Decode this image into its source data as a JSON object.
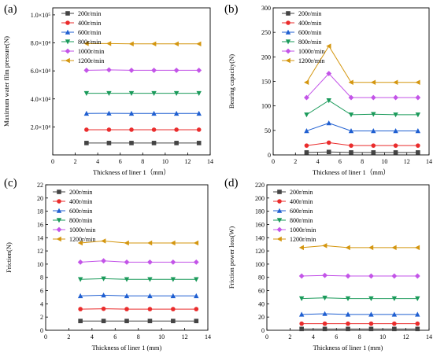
{
  "chart_data": [
    {
      "type": "line",
      "panel_label": "(a)",
      "xlabel": "Thickness of liner 1（mm）",
      "ylabel": "Maximum water film pressure(N)",
      "xlim": [
        0,
        14
      ],
      "ylim": [
        0,
        1.05
      ],
      "x_ticks": [
        0,
        2,
        4,
        6,
        8,
        10,
        12,
        14
      ],
      "x_tick_labels": [
        "0",
        "2",
        "4",
        "6",
        "8",
        "10",
        "12",
        "14"
      ],
      "y_ticks": [
        0.2,
        0.4,
        0.6,
        0.8,
        1.0
      ],
      "y_tick_labels": [
        "2.0×10⁴",
        "4.0×10⁴",
        "6.0×10⁴",
        "8.0×10⁴",
        "1.0×10⁵"
      ],
      "legend_position": "top-left",
      "x": [
        3,
        5,
        7,
        9,
        11,
        13
      ],
      "series": [
        {
          "name": "200r/min",
          "values": [
            0.085,
            0.085,
            0.085,
            0.085,
            0.085,
            0.085
          ]
        },
        {
          "name": "400r/min",
          "values": [
            0.18,
            0.18,
            0.18,
            0.18,
            0.18,
            0.18
          ]
        },
        {
          "name": "600r/min",
          "values": [
            0.296,
            0.297,
            0.296,
            0.296,
            0.296,
            0.296
          ]
        },
        {
          "name": "800r/min",
          "values": [
            0.44,
            0.44,
            0.44,
            0.44,
            0.44,
            0.44
          ]
        },
        {
          "name": "1000r/min",
          "values": [
            0.604,
            0.607,
            0.604,
            0.604,
            0.604,
            0.604
          ]
        },
        {
          "name": "1200r/min",
          "values": [
            0.795,
            0.795,
            0.793,
            0.793,
            0.793,
            0.793
          ]
        }
      ]
    },
    {
      "type": "line",
      "panel_label": "(b)",
      "xlabel": "Thickness of liner 1（mm）",
      "ylabel": "Bearing  capacity(N)",
      "xlim": [
        0,
        14
      ],
      "ylim": [
        0,
        300
      ],
      "x_ticks": [
        0,
        2,
        4,
        6,
        8,
        10,
        12,
        14
      ],
      "x_tick_labels": [
        "0",
        "2",
        "4",
        "6",
        "8",
        "10",
        "12",
        "14"
      ],
      "y_ticks": [
        0,
        50,
        100,
        150,
        200,
        250,
        300
      ],
      "y_tick_labels": [
        "0",
        "50",
        "100",
        "150",
        "200",
        "250",
        "300"
      ],
      "legend_position": "top-left",
      "x": [
        3,
        5,
        7,
        9,
        11,
        13
      ],
      "series": [
        {
          "name": "200r/min",
          "values": [
            5,
            6,
            5,
            5,
            5,
            5
          ]
        },
        {
          "name": "400r/min",
          "values": [
            19,
            25,
            19,
            19,
            19,
            19
          ]
        },
        {
          "name": "600r/min",
          "values": [
            49,
            65,
            49,
            49,
            49,
            49
          ]
        },
        {
          "name": "800r/min",
          "values": [
            82,
            111,
            82,
            83,
            82,
            82
          ]
        },
        {
          "name": "1000r/min",
          "values": [
            117,
            166,
            117,
            117,
            117,
            117
          ]
        },
        {
          "name": "1200r/min",
          "values": [
            148,
            222,
            148,
            148,
            148,
            148
          ]
        }
      ]
    },
    {
      "type": "line",
      "panel_label": "(c)",
      "xlabel": "Thickness of liner 1 (mm)",
      "ylabel": "Friction(N)",
      "xlim": [
        0,
        14
      ],
      "ylim": [
        0,
        22
      ],
      "x_ticks": [
        0,
        2,
        4,
        6,
        8,
        10,
        12,
        14
      ],
      "x_tick_labels": [
        "0",
        "2",
        "4",
        "6",
        "8",
        "10",
        "12",
        "14"
      ],
      "y_ticks": [
        0,
        2,
        4,
        6,
        8,
        10,
        12,
        14,
        16,
        18,
        20,
        22
      ],
      "y_tick_labels": [
        "0",
        "2",
        "4",
        "6",
        "8",
        "10",
        "12",
        "14",
        "16",
        "18",
        "20",
        "22"
      ],
      "legend_position": "top-left",
      "x": [
        3,
        5,
        7,
        9,
        11,
        13
      ],
      "series": [
        {
          "name": "200r/min",
          "values": [
            1.4,
            1.4,
            1.4,
            1.4,
            1.4,
            1.4
          ]
        },
        {
          "name": "400r/min",
          "values": [
            3.2,
            3.25,
            3.2,
            3.2,
            3.2,
            3.2
          ]
        },
        {
          "name": "600r/min",
          "values": [
            5.2,
            5.3,
            5.2,
            5.2,
            5.2,
            5.2
          ]
        },
        {
          "name": "800r/min",
          "values": [
            7.7,
            7.8,
            7.7,
            7.7,
            7.7,
            7.7
          ]
        },
        {
          "name": "1000r/min",
          "values": [
            10.3,
            10.5,
            10.3,
            10.3,
            10.3,
            10.3
          ]
        },
        {
          "name": "1200r/min",
          "values": [
            13.2,
            13.5,
            13.2,
            13.2,
            13.2,
            13.2
          ]
        }
      ]
    },
    {
      "type": "line",
      "panel_label": "(d)",
      "xlabel": "Thickness of liner 1 (mm)",
      "ylabel": "Friction  power loss(W)",
      "xlim": [
        0,
        14
      ],
      "ylim": [
        0,
        220
      ],
      "x_ticks": [
        0,
        2,
        4,
        6,
        8,
        10,
        12,
        14
      ],
      "x_tick_labels": [
        "0",
        "2",
        "4",
        "6",
        "8",
        "10",
        "12",
        "14"
      ],
      "y_ticks": [
        0,
        20,
        40,
        60,
        80,
        100,
        120,
        140,
        160,
        180,
        200,
        220
      ],
      "y_tick_labels": [
        "0",
        "20",
        "40",
        "60",
        "80",
        "100",
        "120",
        "140",
        "160",
        "180",
        "200",
        "220"
      ],
      "legend_position": "top-left",
      "x": [
        3,
        5,
        7,
        9,
        11,
        13
      ],
      "series": [
        {
          "name": "200r/min",
          "values": [
            2,
            2,
            2,
            2,
            2,
            2
          ]
        },
        {
          "name": "400r/min",
          "values": [
            10,
            10,
            10,
            10,
            10,
            10
          ]
        },
        {
          "name": "600r/min",
          "values": [
            24,
            25,
            24,
            24,
            24,
            24
          ]
        },
        {
          "name": "800r/min",
          "values": [
            48,
            49,
            48,
            48,
            48,
            48
          ]
        },
        {
          "name": "1000r/min",
          "values": [
            82,
            83,
            82,
            82,
            82,
            82
          ]
        },
        {
          "name": "1200r/min",
          "values": [
            125,
            128,
            125,
            125,
            125,
            125
          ]
        }
      ]
    }
  ],
  "series_style": [
    {
      "color": "#444444",
      "marker": "square"
    },
    {
      "color": "#ea2c2c",
      "marker": "circle"
    },
    {
      "color": "#1f5fd1",
      "marker": "triangle-up"
    },
    {
      "color": "#1a9a5a",
      "marker": "triangle-down"
    },
    {
      "color": "#c354e8",
      "marker": "diamond"
    },
    {
      "color": "#d4960f",
      "marker": "triangle-left"
    }
  ]
}
